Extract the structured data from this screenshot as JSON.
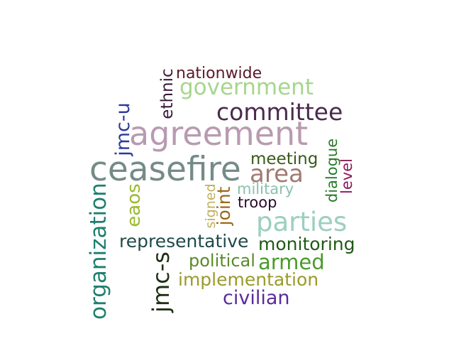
{
  "cloud": {
    "words": [
      {
        "text": "ceasefire",
        "color": "#758b87"
      },
      {
        "text": "agreement",
        "color": "#b89bb0"
      },
      {
        "text": "parties",
        "color": "#9ccfbf"
      },
      {
        "text": "committee",
        "color": "#4a2a4c"
      },
      {
        "text": "government",
        "color": "#a6d68c"
      },
      {
        "text": "area",
        "color": "#a07a70"
      },
      {
        "text": "organization",
        "color": "#1f7f6f"
      },
      {
        "text": "jmc-s",
        "color": "#1f2f14"
      },
      {
        "text": "jmc-u",
        "color": "#2a3a9a"
      },
      {
        "text": "representative",
        "color": "#1f4a4a"
      },
      {
        "text": "monitoring",
        "color": "#1f5a14"
      },
      {
        "text": "armed",
        "color": "#4a9a2a"
      },
      {
        "text": "implementation",
        "color": "#9a9a2a"
      },
      {
        "text": "civilian",
        "color": "#5a2a9a"
      },
      {
        "text": "political",
        "color": "#5a8a2a"
      },
      {
        "text": "meeting",
        "color": "#3a5a1a"
      },
      {
        "text": "military",
        "color": "#8ac0b0"
      },
      {
        "text": "troop",
        "color": "#2a0a2a"
      },
      {
        "text": "nationwide",
        "color": "#5a1a2a"
      },
      {
        "text": "ethnic",
        "color": "#3a1a3a"
      },
      {
        "text": "eaos",
        "color": "#9aba2a"
      },
      {
        "text": "signed",
        "color": "#c0b05a"
      },
      {
        "text": "joint",
        "color": "#9a6a1a"
      },
      {
        "text": "dialogue",
        "color": "#2a7a2a"
      },
      {
        "text": "level",
        "color": "#8a1a5a"
      }
    ]
  }
}
